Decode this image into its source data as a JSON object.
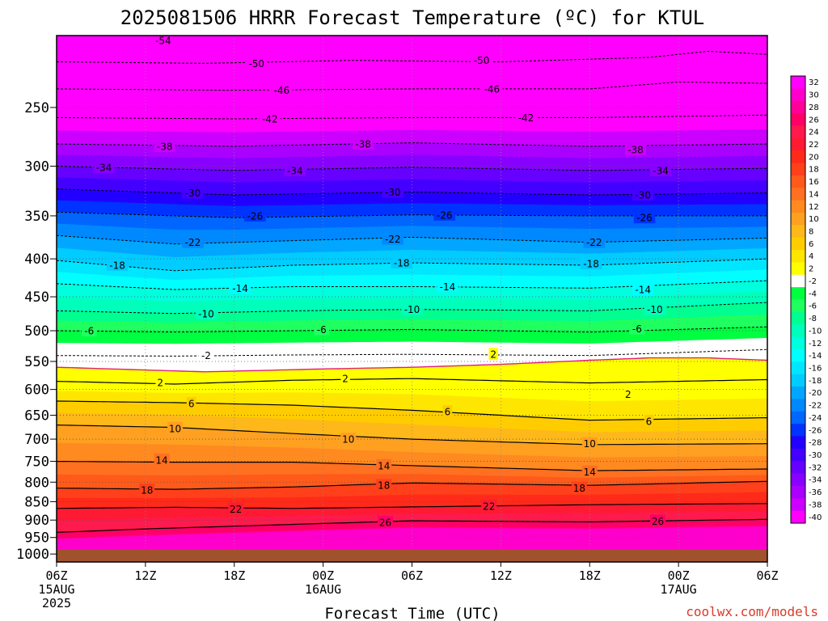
{
  "title": "2025081506 HRRR Forecast Temperature (ºC) for KTUL",
  "credit": "coolwx.com/models",
  "chart_data": {
    "type": "heatmap",
    "title": "2025081506 HRRR Forecast Temperature (ºC) for KTUL",
    "xlabel": "Forecast Time (UTC)",
    "ylabel": "",
    "x_ticks": [
      {
        "hours": 0,
        "lines": [
          "06Z",
          "15AUG",
          "2025"
        ]
      },
      {
        "hours": 6,
        "lines": [
          "12Z"
        ]
      },
      {
        "hours": 12,
        "lines": [
          "18Z"
        ]
      },
      {
        "hours": 18,
        "lines": [
          "00Z",
          "16AUG"
        ]
      },
      {
        "hours": 24,
        "lines": [
          "06Z"
        ]
      },
      {
        "hours": 30,
        "lines": [
          "12Z"
        ]
      },
      {
        "hours": 36,
        "lines": [
          "18Z"
        ]
      },
      {
        "hours": 42,
        "lines": [
          "00Z",
          "17AUG"
        ]
      },
      {
        "hours": 48,
        "lines": [
          "06Z"
        ]
      }
    ],
    "y_ticks": [
      250,
      300,
      350,
      400,
      450,
      500,
      550,
      600,
      650,
      700,
      750,
      800,
      850,
      900,
      950,
      1000
    ],
    "ylim": [
      1025,
      200
    ],
    "yscale": "log-reversed",
    "xlim": [
      0,
      48
    ],
    "grid": true,
    "colorbar_levels": [
      32,
      30,
      28,
      26,
      24,
      22,
      20,
      18,
      16,
      14,
      12,
      10,
      8,
      6,
      4,
      2,
      -2,
      -4,
      -6,
      -8,
      -10,
      -12,
      -14,
      -16,
      -18,
      -20,
      -22,
      -24,
      -26,
      -28,
      -30,
      -32,
      -34,
      -36,
      -38,
      -40
    ],
    "colorbar_colors": [
      "#ff00ff",
      "#ff00cc",
      "#ff0099",
      "#ff0066",
      "#ff1a4d",
      "#ff1a33",
      "#ff2a1a",
      "#ff401a",
      "#ff5a1a",
      "#ff7020",
      "#ff8a20",
      "#ffa020",
      "#ffb81a",
      "#ffcc00",
      "#ffe600",
      "#ffff00",
      "#ffffff",
      "#00ff40",
      "#20ff60",
      "#00ff90",
      "#00ffbb",
      "#00ffdd",
      "#00ffff",
      "#00e6ff",
      "#00ccff",
      "#00a6ff",
      "#0088ff",
      "#0066ff",
      "#0033ff",
      "#2200ff",
      "#4400ff",
      "#6600ff",
      "#8800ff",
      "#aa00ff",
      "#cc00ff",
      "#ff00ff"
    ],
    "contours_cold": [
      {
        "value": -54,
        "levels": [
          [
            0,
            200
          ],
          [
            48,
            200
          ]
        ]
      },
      {
        "value": -50,
        "levels": [
          [
            0,
            217
          ],
          [
            10,
            218
          ],
          [
            20,
            216
          ],
          [
            30,
            217
          ],
          [
            40,
            214
          ],
          [
            44,
            210
          ],
          [
            48,
            212
          ]
        ]
      },
      {
        "value": -46,
        "levels": [
          [
            0,
            236
          ],
          [
            12,
            237
          ],
          [
            24,
            236
          ],
          [
            36,
            236
          ],
          [
            42,
            231
          ],
          [
            48,
            232
          ]
        ]
      },
      {
        "value": -42,
        "levels": [
          [
            0,
            258
          ],
          [
            12,
            259
          ],
          [
            24,
            258
          ],
          [
            36,
            258
          ],
          [
            48,
            256
          ]
        ]
      },
      {
        "value": -38,
        "levels": [
          [
            0,
            280
          ],
          [
            12,
            282
          ],
          [
            24,
            279
          ],
          [
            36,
            282
          ],
          [
            48,
            280
          ]
        ]
      },
      {
        "value": -34,
        "levels": [
          [
            0,
            300
          ],
          [
            12,
            304
          ],
          [
            24,
            301
          ],
          [
            36,
            304
          ],
          [
            48,
            302
          ]
        ]
      },
      {
        "value": -30,
        "levels": [
          [
            0,
            322
          ],
          [
            12,
            328
          ],
          [
            24,
            325
          ],
          [
            36,
            328
          ],
          [
            48,
            326
          ]
        ]
      },
      {
        "value": -26,
        "levels": [
          [
            0,
            346
          ],
          [
            12,
            352
          ],
          [
            24,
            349
          ],
          [
            36,
            350
          ],
          [
            48,
            350
          ]
        ]
      },
      {
        "value": -22,
        "levels": [
          [
            0,
            372
          ],
          [
            8,
            382
          ],
          [
            16,
            378
          ],
          [
            24,
            374
          ],
          [
            36,
            380
          ],
          [
            48,
            375
          ]
        ]
      },
      {
        "value": -18,
        "levels": [
          [
            0,
            402
          ],
          [
            8,
            415
          ],
          [
            16,
            408
          ],
          [
            24,
            405
          ],
          [
            36,
            408
          ],
          [
            48,
            400
          ]
        ]
      },
      {
        "value": -14,
        "levels": [
          [
            0,
            432
          ],
          [
            8,
            440
          ],
          [
            16,
            436
          ],
          [
            24,
            436
          ],
          [
            36,
            438
          ],
          [
            48,
            428
          ]
        ]
      },
      {
        "value": -10,
        "levels": [
          [
            0,
            470
          ],
          [
            8,
            474
          ],
          [
            16,
            470
          ],
          [
            24,
            468
          ],
          [
            36,
            470
          ],
          [
            48,
            458
          ]
        ]
      },
      {
        "value": -6,
        "levels": [
          [
            0,
            500
          ],
          [
            8,
            502
          ],
          [
            16,
            500
          ],
          [
            24,
            498
          ],
          [
            36,
            502
          ],
          [
            48,
            494
          ]
        ]
      },
      {
        "value": -2,
        "levels": [
          [
            0,
            540
          ],
          [
            8,
            541
          ],
          [
            16,
            539
          ],
          [
            24,
            538
          ],
          [
            36,
            540
          ],
          [
            48,
            530
          ]
        ]
      }
    ],
    "contours_warm": [
      {
        "value": 2,
        "levels": [
          [
            0,
            585
          ],
          [
            8,
            590
          ],
          [
            16,
            583
          ],
          [
            24,
            580
          ],
          [
            36,
            588
          ],
          [
            48,
            582
          ]
        ]
      },
      {
        "value": 6,
        "levels": [
          [
            0,
            622
          ],
          [
            8,
            625
          ],
          [
            16,
            630
          ],
          [
            24,
            640
          ],
          [
            36,
            660
          ],
          [
            48,
            655
          ]
        ]
      },
      {
        "value": 10,
        "levels": [
          [
            0,
            670
          ],
          [
            8,
            675
          ],
          [
            16,
            688
          ],
          [
            24,
            700
          ],
          [
            36,
            712
          ],
          [
            48,
            710
          ]
        ]
      },
      {
        "value": 14,
        "levels": [
          [
            0,
            750
          ],
          [
            8,
            752
          ],
          [
            16,
            752
          ],
          [
            24,
            760
          ],
          [
            36,
            772
          ],
          [
            48,
            768
          ]
        ]
      },
      {
        "value": 18,
        "levels": [
          [
            0,
            815
          ],
          [
            8,
            818
          ],
          [
            16,
            812
          ],
          [
            24,
            802
          ],
          [
            36,
            808
          ],
          [
            48,
            798
          ]
        ]
      },
      {
        "value": 22,
        "levels": [
          [
            0,
            868
          ],
          [
            8,
            865
          ],
          [
            16,
            868
          ],
          [
            24,
            864
          ],
          [
            36,
            858
          ],
          [
            48,
            855
          ]
        ]
      },
      {
        "value": 26,
        "levels": [
          [
            0,
            935
          ],
          [
            6,
            925
          ],
          [
            16,
            912
          ],
          [
            24,
            902
          ],
          [
            36,
            905
          ],
          [
            48,
            898
          ]
        ]
      }
    ],
    "contour_labels": [
      {
        "text": "-54",
        "x": 7.2,
        "p": 203
      },
      {
        "text": "-50",
        "x": 13.5,
        "p": 218
      },
      {
        "text": "-50",
        "x": 28.7,
        "p": 216
      },
      {
        "text": "-46",
        "x": 15.2,
        "p": 237
      },
      {
        "text": "-46",
        "x": 29.4,
        "p": 236
      },
      {
        "text": "-42",
        "x": 14.4,
        "p": 259
      },
      {
        "text": "-42",
        "x": 31.7,
        "p": 258
      },
      {
        "text": "-38",
        "x": 7.3,
        "p": 282
      },
      {
        "text": "-38",
        "x": 20.7,
        "p": 280
      },
      {
        "text": "-38",
        "x": 39.1,
        "p": 285
      },
      {
        "text": "-34",
        "x": 3.2,
        "p": 301
      },
      {
        "text": "-34",
        "x": 16.1,
        "p": 304
      },
      {
        "text": "-34",
        "x": 40.8,
        "p": 304
      },
      {
        "text": "-30",
        "x": 9.2,
        "p": 326
      },
      {
        "text": "-30",
        "x": 22.7,
        "p": 325
      },
      {
        "text": "-30",
        "x": 39.6,
        "p": 328
      },
      {
        "text": "-26",
        "x": 13.4,
        "p": 350
      },
      {
        "text": "-26",
        "x": 26.2,
        "p": 349
      },
      {
        "text": "-26",
        "x": 39.7,
        "p": 352
      },
      {
        "text": "-22",
        "x": 9.2,
        "p": 380
      },
      {
        "text": "-22",
        "x": 22.7,
        "p": 376
      },
      {
        "text": "-22",
        "x": 36.3,
        "p": 380
      },
      {
        "text": "-18",
        "x": 4.1,
        "p": 408
      },
      {
        "text": "-18",
        "x": 23.3,
        "p": 405
      },
      {
        "text": "-18",
        "x": 36.1,
        "p": 406
      },
      {
        "text": "-14",
        "x": 12.4,
        "p": 438
      },
      {
        "text": "-14",
        "x": 26.4,
        "p": 436
      },
      {
        "text": "-14",
        "x": 39.6,
        "p": 440
      },
      {
        "text": "-10",
        "x": 10.1,
        "p": 474
      },
      {
        "text": "-10",
        "x": 24.0,
        "p": 468
      },
      {
        "text": "-10",
        "x": 40.4,
        "p": 468
      },
      {
        "text": "-6",
        "x": 2.2,
        "p": 500
      },
      {
        "text": "-6",
        "x": 17.9,
        "p": 498
      },
      {
        "text": "-6",
        "x": 39.2,
        "p": 497
      },
      {
        "text": "-2",
        "x": 10.1,
        "p": 540
      },
      {
        "text": "2",
        "x": 29.5,
        "p": 538
      },
      {
        "text": "2",
        "x": 7.0,
        "p": 587
      },
      {
        "text": "2",
        "x": 19.5,
        "p": 580
      },
      {
        "text": "2",
        "x": 38.6,
        "p": 609
      },
      {
        "text": "6",
        "x": 9.1,
        "p": 627
      },
      {
        "text": "6",
        "x": 26.4,
        "p": 643
      },
      {
        "text": "6",
        "x": 40.0,
        "p": 662
      },
      {
        "text": "10",
        "x": 8.0,
        "p": 677
      },
      {
        "text": "10",
        "x": 19.7,
        "p": 700
      },
      {
        "text": "10",
        "x": 36.0,
        "p": 710
      },
      {
        "text": "14",
        "x": 7.1,
        "p": 747
      },
      {
        "text": "14",
        "x": 22.1,
        "p": 760
      },
      {
        "text": "14",
        "x": 36.0,
        "p": 775
      },
      {
        "text": "18",
        "x": 6.1,
        "p": 820
      },
      {
        "text": "18",
        "x": 22.1,
        "p": 808
      },
      {
        "text": "18",
        "x": 35.3,
        "p": 815
      },
      {
        "text": "22",
        "x": 12.1,
        "p": 870
      },
      {
        "text": "22",
        "x": 29.2,
        "p": 862
      },
      {
        "text": "26",
        "x": 22.2,
        "p": 906
      },
      {
        "text": "26",
        "x": 40.6,
        "p": 903
      }
    ],
    "freezing_level": {
      "value": 0,
      "color": "#e0207a",
      "levels": [
        [
          0,
          560
        ],
        [
          10,
          568
        ],
        [
          18,
          563
        ],
        [
          24,
          560
        ],
        [
          30,
          555
        ],
        [
          36,
          548
        ],
        [
          40,
          544
        ],
        [
          44,
          544
        ],
        [
          48,
          548
        ]
      ]
    },
    "ground": {
      "color": "#a0522d",
      "pressure": 985
    }
  }
}
